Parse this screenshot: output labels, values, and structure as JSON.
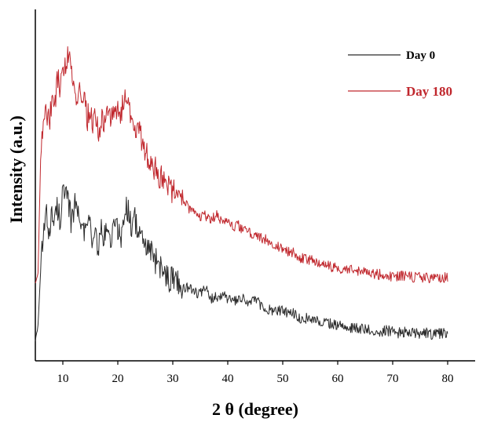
{
  "chart_data": {
    "type": "line",
    "title": "",
    "xlabel": "2 θ (degree)",
    "ylabel": "Intensity (a.u.)",
    "xlim": [
      5,
      85
    ],
    "x_ticks": [
      10,
      20,
      30,
      40,
      50,
      60,
      70,
      80
    ],
    "x_tick_labels": [
      "10",
      "20",
      "30",
      "40",
      "50",
      "60",
      "70",
      "80"
    ],
    "y_ticks_shown": false,
    "grid": false,
    "legend_position": "top-right",
    "series": [
      {
        "name": "Day 0",
        "color": "#2b2b2b",
        "x": [
          5.0,
          5.5,
          6.0,
          6.5,
          7.0,
          7.5,
          8.0,
          8.5,
          9.0,
          9.5,
          10.0,
          10.5,
          11.0,
          11.5,
          12.0,
          12.5,
          13.0,
          13.5,
          14.0,
          14.5,
          15.0,
          15.5,
          16.0,
          16.5,
          17.0,
          17.5,
          18.0,
          18.5,
          19.0,
          19.5,
          20.0,
          20.5,
          21.0,
          21.5,
          22.0,
          22.5,
          23.0,
          23.5,
          24.0,
          24.5,
          25.0,
          25.5,
          26.0,
          26.5,
          27.0,
          27.5,
          28.0,
          28.5,
          29.0,
          29.5,
          30.0,
          30.5,
          31.0,
          32.0,
          33.0,
          34.0,
          35.0,
          36.0,
          37.0,
          38.0,
          39.0,
          40.0,
          41.0,
          42.0,
          43.0,
          44.0,
          45.0,
          46.0,
          47.0,
          48.0,
          49.0,
          50.0,
          51.0,
          52.0,
          53.0,
          54.0,
          55.0,
          56.0,
          57.0,
          58.0,
          59.0,
          60.0,
          61.0,
          62.0,
          63.0,
          64.0,
          65.0,
          66.0,
          67.0,
          68.0,
          69.0,
          70.0,
          71.0,
          72.0,
          73.0,
          74.0,
          75.0,
          76.0,
          77.0,
          78.0,
          79.0,
          80.0
        ],
        "y": [
          0.2,
          0.8,
          3.2,
          4.6,
          5.3,
          4.7,
          5.4,
          5.0,
          5.7,
          5.2,
          6.3,
          6.0,
          5.8,
          5.1,
          5.6,
          5.9,
          5.0,
          5.5,
          4.5,
          5.2,
          4.8,
          4.1,
          4.6,
          3.9,
          4.7,
          4.3,
          4.9,
          4.2,
          4.6,
          4.9,
          4.8,
          4.3,
          5.1,
          5.6,
          5.5,
          4.9,
          5.3,
          4.8,
          4.6,
          4.1,
          4.2,
          3.8,
          3.9,
          3.3,
          3.5,
          3.1,
          3.2,
          2.8,
          3.0,
          2.6,
          3.0,
          2.6,
          2.6,
          2.3,
          2.4,
          2.2,
          2.1,
          2.3,
          1.9,
          2.0,
          2.1,
          1.9,
          1.8,
          1.8,
          1.9,
          1.7,
          1.9,
          1.6,
          1.5,
          1.4,
          1.4,
          1.4,
          1.3,
          1.3,
          1.1,
          1.1,
          1.1,
          1.0,
          0.95,
          0.95,
          0.85,
          0.8,
          0.85,
          0.7,
          0.7,
          0.65,
          0.65,
          0.6,
          0.6,
          0.55,
          0.6,
          0.55,
          0.5,
          0.55,
          0.5,
          0.5,
          0.45,
          0.5,
          0.45,
          0.45,
          0.5,
          0.45
        ]
      },
      {
        "name": "Day 180",
        "color": "#c0272d",
        "x": [
          5.0,
          5.5,
          6.0,
          6.5,
          7.0,
          7.5,
          8.0,
          8.5,
          9.0,
          9.5,
          10.0,
          10.5,
          11.0,
          11.5,
          12.0,
          12.5,
          13.0,
          13.5,
          14.0,
          14.5,
          15.0,
          15.5,
          16.0,
          16.5,
          17.0,
          17.5,
          18.0,
          18.5,
          19.0,
          19.5,
          20.0,
          20.5,
          21.0,
          21.5,
          22.0,
          22.5,
          23.0,
          23.5,
          24.0,
          24.5,
          25.0,
          25.5,
          26.0,
          26.5,
          27.0,
          27.5,
          28.0,
          28.5,
          29.0,
          29.5,
          30.0,
          30.5,
          31.0,
          32.0,
          33.0,
          34.0,
          35.0,
          36.0,
          37.0,
          38.0,
          39.0,
          40.0,
          41.0,
          42.0,
          43.0,
          44.0,
          45.0,
          46.0,
          47.0,
          48.0,
          49.0,
          50.0,
          51.0,
          52.0,
          53.0,
          54.0,
          55.0,
          56.0,
          57.0,
          58.0,
          59.0,
          60.0,
          61.0,
          62.0,
          63.0,
          64.0,
          65.0,
          66.0,
          67.0,
          68.0,
          69.0,
          70.0,
          71.0,
          72.0,
          73.0,
          74.0,
          75.0,
          76.0,
          77.0,
          78.0,
          79.0,
          80.0
        ],
        "y": [
          2.5,
          3.0,
          8.0,
          9.2,
          9.8,
          9.0,
          10.2,
          9.6,
          11.0,
          10.5,
          11.7,
          11.2,
          12.0,
          11.3,
          10.8,
          10.0,
          10.4,
          9.6,
          9.9,
          9.3,
          9.7,
          8.9,
          9.4,
          8.8,
          9.2,
          9.0,
          9.5,
          9.3,
          9.8,
          9.2,
          9.7,
          9.4,
          9.9,
          10.2,
          9.6,
          9.0,
          9.2,
          8.6,
          8.8,
          8.2,
          8.0,
          7.6,
          7.5,
          7.1,
          7.2,
          6.8,
          6.9,
          6.5,
          6.6,
          6.2,
          6.4,
          6.0,
          6.0,
          5.8,
          5.6,
          5.5,
          5.3,
          5.3,
          5.2,
          5.3,
          5.1,
          5.2,
          4.8,
          4.9,
          4.7,
          4.6,
          4.5,
          4.4,
          4.3,
          4.2,
          4.0,
          4.0,
          3.8,
          3.8,
          3.6,
          3.5,
          3.5,
          3.4,
          3.3,
          3.3,
          3.2,
          3.2,
          3.1,
          3.1,
          3.0,
          3.0,
          2.95,
          2.9,
          2.9,
          2.9,
          2.85,
          2.8,
          2.85,
          2.8,
          2.8,
          2.75,
          2.8,
          2.75,
          2.7,
          2.75,
          2.75,
          2.8
        ]
      }
    ]
  }
}
